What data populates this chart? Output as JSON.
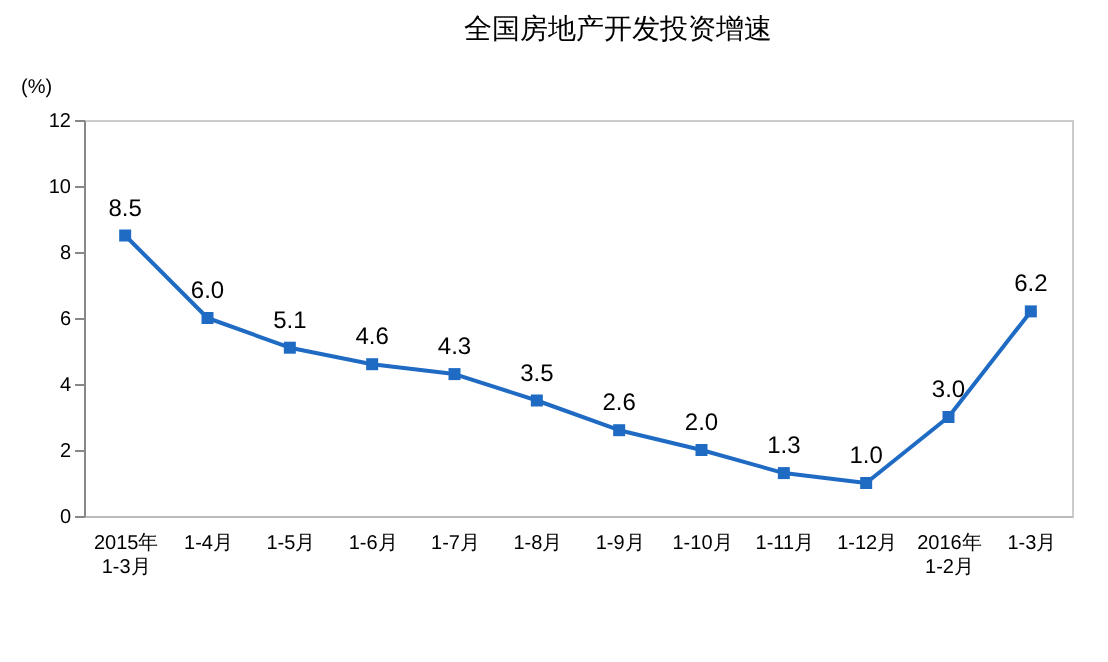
{
  "chart_data": {
    "type": "line",
    "title": "全国房地产开发投资增速",
    "ylabel": "(%)",
    "categories": [
      "2015年\n1-3月",
      "1-4月",
      "1-5月",
      "1-6月",
      "1-7月",
      "1-8月",
      "1-9月",
      "1-10月",
      "1-11月",
      "1-12月",
      "2016年\n1-2月",
      "1-3月"
    ],
    "series": [
      {
        "color": "#1f6bc4",
        "values": [
          8.5,
          6.0,
          5.1,
          4.6,
          4.3,
          3.5,
          2.6,
          2.0,
          1.3,
          1.0,
          3.0,
          6.2
        ]
      }
    ],
    "value_labels": [
      "8.5",
      "6.0",
      "5.1",
      "4.6",
      "4.3",
      "3.5",
      "2.6",
      "2.0",
      "1.3",
      "1.0",
      "3.0",
      "6.2"
    ],
    "ylim": [
      0,
      12
    ],
    "yticks": [
      0,
      2,
      4,
      6,
      8,
      10,
      12
    ],
    "marker": "square",
    "line_style": "solid",
    "grid": false,
    "legend": false
  }
}
